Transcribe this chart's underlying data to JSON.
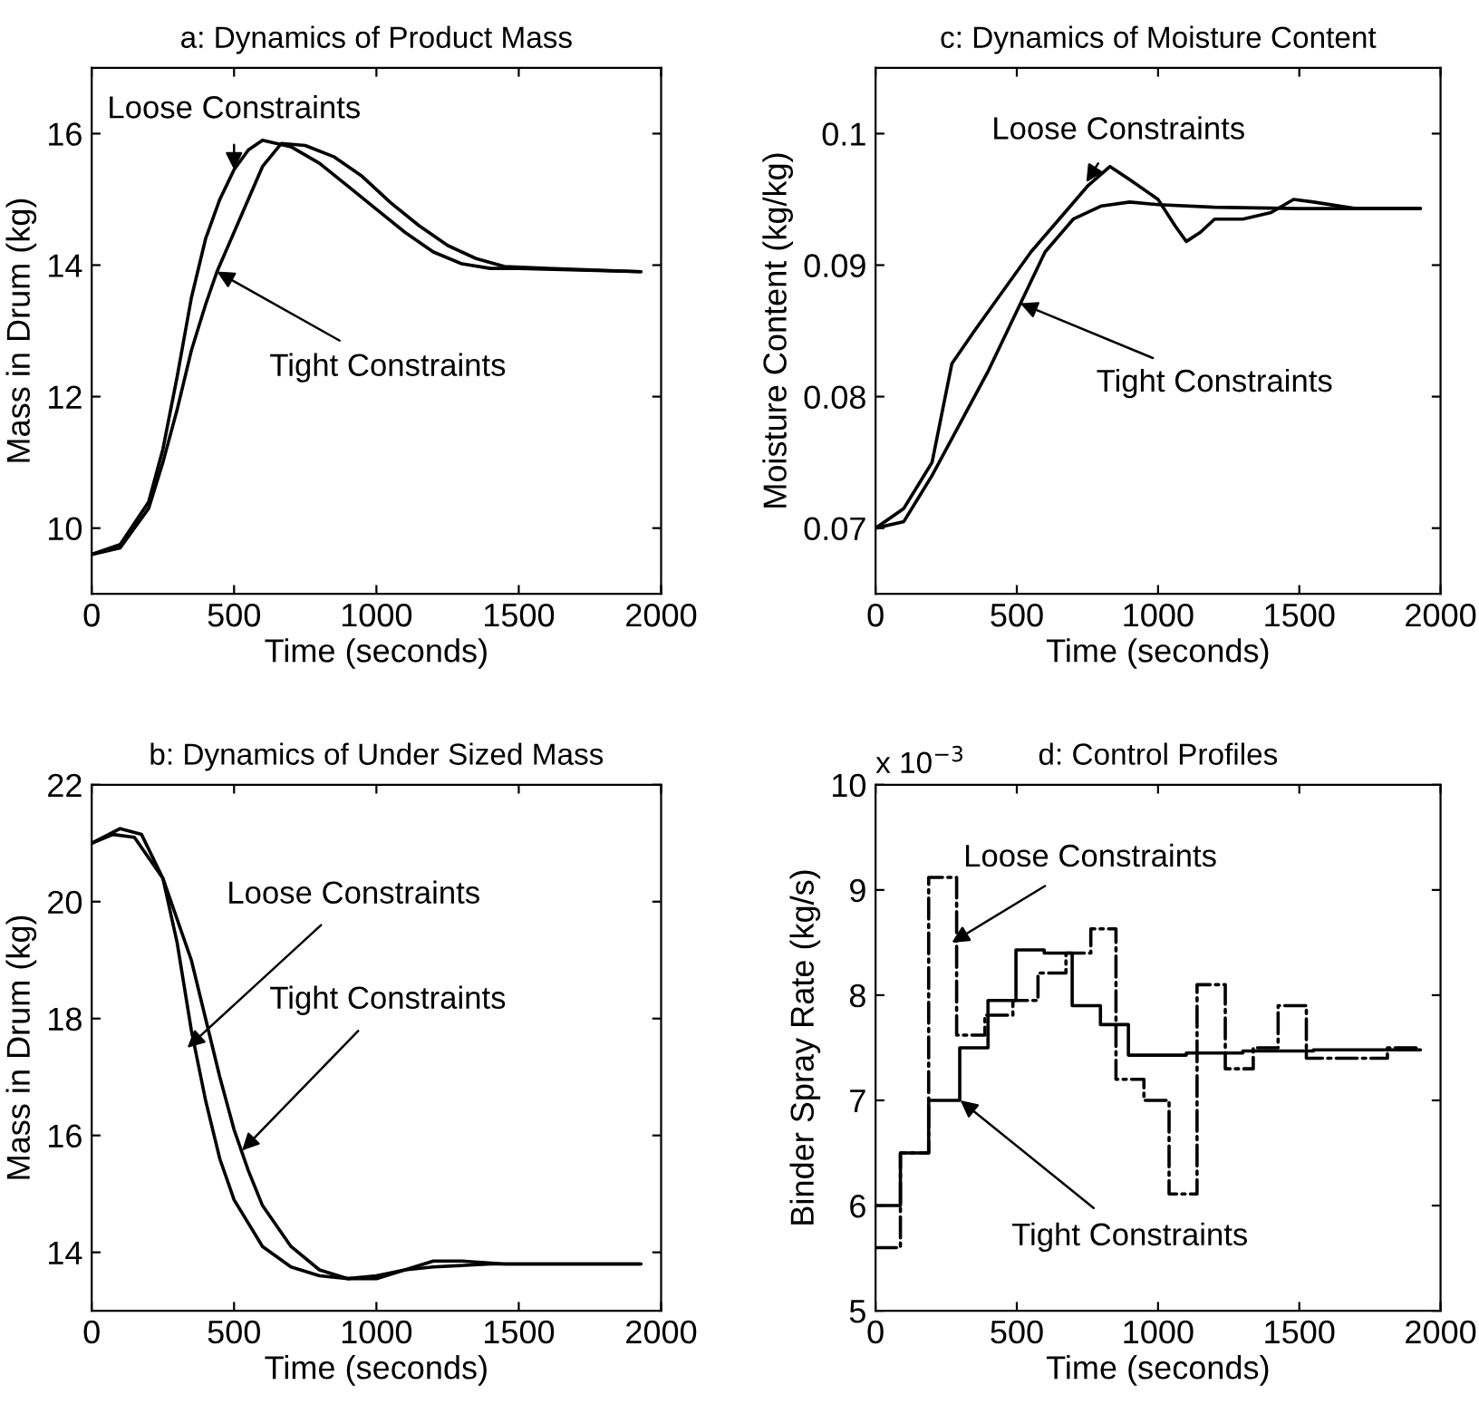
{
  "chart_data": [
    {
      "type": "line",
      "title": "a: Dynamics of Product Mass",
      "xlabel": "Time (seconds)",
      "ylabel": "Mass in Drum (kg)",
      "xlim": [
        0,
        2000
      ],
      "xticks": [
        0,
        500,
        1000,
        1500,
        2000
      ],
      "ylim": [
        9,
        17
      ],
      "yticks": [
        10,
        12,
        14,
        16
      ],
      "grid": false,
      "legend": false,
      "series": [
        {
          "color": "#000000",
          "line_style": "solid",
          "x": [
            0,
            100,
            200,
            250,
            300,
            350,
            400,
            450,
            500,
            550,
            600,
            700,
            800,
            900,
            1000,
            1100,
            1200,
            1300,
            1400,
            1500,
            1929
          ],
          "values": [
            9.6,
            9.75,
            10.4,
            11.2,
            12.3,
            13.5,
            14.4,
            15.0,
            15.45,
            15.75,
            15.9,
            15.8,
            15.55,
            15.2,
            14.85,
            14.5,
            14.2,
            14.02,
            13.95,
            13.95,
            13.9
          ]
        },
        {
          "color": "#000000",
          "line_style": "solid",
          "x": [
            0,
            100,
            200,
            250,
            300,
            350,
            400,
            440,
            500,
            550,
            600,
            666,
            750,
            850,
            950,
            1050,
            1150,
            1250,
            1350,
            1450,
            1600,
            1929
          ],
          "values": [
            9.6,
            9.7,
            10.3,
            11.0,
            11.8,
            12.7,
            13.4,
            13.9,
            14.5,
            15.0,
            15.5,
            15.85,
            15.82,
            15.65,
            15.35,
            14.95,
            14.6,
            14.3,
            14.1,
            13.98,
            13.95,
            13.9
          ]
        }
      ],
      "annotations": [
        {
          "text": "Loose Constraints",
          "x": 500,
          "y": 15.45
        },
        {
          "text": "Tight Constraints",
          "x": 440,
          "y": 13.9
        }
      ]
    },
    {
      "type": "line",
      "title": "c: Dynamics of Moisture Content",
      "xlabel": "Time (seconds)",
      "ylabel": "Moisture Content (kg/kg)",
      "xlim": [
        0,
        2000
      ],
      "xticks": [
        0,
        500,
        1000,
        1500,
        2000
      ],
      "ylim": [
        0.065,
        0.105
      ],
      "yticks": [
        0.07,
        0.08,
        0.09,
        0.1
      ],
      "grid": false,
      "legend": false,
      "series": [
        {
          "color": "#000000",
          "line_style": "solid",
          "x": [
            0,
            100,
            200,
            270,
            350,
            450,
            550,
            650,
            750,
            830,
            900,
            1000,
            1060,
            1100,
            1150,
            1200,
            1300,
            1400,
            1480,
            1550,
            1700,
            1929
          ],
          "values": [
            0.07,
            0.0715,
            0.075,
            0.0825,
            0.085,
            0.088,
            0.091,
            0.0935,
            0.096,
            0.0975,
            0.0965,
            0.095,
            0.093,
            0.0918,
            0.0925,
            0.0935,
            0.0935,
            0.094,
            0.095,
            0.0948,
            0.0943,
            0.0943
          ]
        },
        {
          "color": "#000000",
          "line_style": "solid",
          "x": [
            0,
            100,
            200,
            300,
            400,
            500,
            600,
            700,
            800,
            900,
            1000,
            1200,
            1500,
            1929
          ],
          "values": [
            0.07,
            0.0705,
            0.074,
            0.078,
            0.082,
            0.0865,
            0.091,
            0.0935,
            0.0945,
            0.0948,
            0.0946,
            0.0944,
            0.0943,
            0.0943
          ]
        }
      ],
      "annotations": [
        {
          "text": "Loose Constraints",
          "x": 746,
          "y": 0.0963
        },
        {
          "text": "Tight Constraints",
          "x": 512,
          "y": 0.0871
        }
      ]
    },
    {
      "type": "line",
      "title": "b: Dynamics of Under Sized Mass",
      "xlabel": "Time (seconds)",
      "ylabel": "Mass in Drum (kg)",
      "xlim": [
        0,
        2000
      ],
      "xticks": [
        0,
        500,
        1000,
        1500,
        2000
      ],
      "ylim": [
        13,
        22
      ],
      "yticks": [
        14,
        16,
        18,
        20,
        22
      ],
      "grid": false,
      "legend": false,
      "series": [
        {
          "color": "#000000",
          "line_style": "solid",
          "x": [
            0,
            75,
            150,
            250,
            300,
            350,
            400,
            450,
            500,
            600,
            700,
            800,
            900,
            1000,
            1100,
            1200,
            1400,
            1929
          ],
          "values": [
            21.0,
            21.15,
            21.1,
            20.4,
            19.3,
            17.8,
            16.6,
            15.6,
            14.9,
            14.1,
            13.75,
            13.6,
            13.55,
            13.6,
            13.7,
            13.75,
            13.8,
            13.8
          ]
        },
        {
          "color": "#000000",
          "line_style": "solid",
          "x": [
            0,
            100,
            175,
            250,
            350,
            400,
            450,
            500,
            550,
            600,
            700,
            800,
            900,
            1000,
            1100,
            1200,
            1300,
            1450,
            1929
          ],
          "values": [
            21.0,
            21.25,
            21.15,
            20.4,
            19.0,
            18.0,
            17.0,
            16.1,
            15.4,
            14.8,
            14.1,
            13.7,
            13.55,
            13.55,
            13.7,
            13.85,
            13.85,
            13.8,
            13.8
          ]
        }
      ],
      "annotations": [
        {
          "text": "Loose Constraints",
          "x": 336,
          "y": 17.5
        },
        {
          "text": "Tight Constraints",
          "x": 528,
          "y": 15.74
        }
      ]
    },
    {
      "type": "step",
      "title": "d: Control Profiles",
      "xlabel": "Time (seconds)",
      "ylabel": "Binder Spray Rate (kg/s)",
      "xlim": [
        0,
        2000
      ],
      "xticks": [
        0,
        500,
        1000,
        1500,
        2000
      ],
      "ylim": [
        5,
        10
      ],
      "yticks": [
        5,
        6,
        7,
        8,
        9,
        10
      ],
      "grid": false,
      "legend": false,
      "series": [
        {
          "color": "#000000",
          "line_style": "dashdot",
          "x": [
            0,
            88,
            188,
            287,
            387,
            486,
            575,
            674,
            762,
            851,
            950,
            1039,
            1138,
            1238,
            1337,
            1425,
            1525,
            1812,
            1929
          ],
          "values": [
            5.6,
            6.5,
            9.12,
            7.62,
            7.81,
            7.95,
            8.21,
            8.4,
            8.63,
            7.2,
            7.0,
            6.11,
            8.1,
            7.3,
            7.5,
            7.9,
            7.4,
            7.5,
            7.5
          ]
        },
        {
          "color": "#000000",
          "line_style": "solid",
          "x": [
            0,
            88,
            188,
            298,
            398,
            497,
            597,
            696,
            796,
            895,
            1100,
            1300,
            1550,
            1929
          ],
          "values": [
            6.0,
            6.5,
            7.0,
            7.5,
            7.95,
            8.43,
            8.4,
            7.9,
            7.72,
            7.43,
            7.45,
            7.47,
            7.48,
            7.48
          ]
        }
      ],
      "annotations": [
        "x 10$^{−3}$",
        {
          "text": "Loose Constraints",
          "x": 270,
          "y": 8.5
        },
        {
          "text": "Tight Constraints",
          "x": 300,
          "y": 7.0
        }
      ]
    }
  ]
}
